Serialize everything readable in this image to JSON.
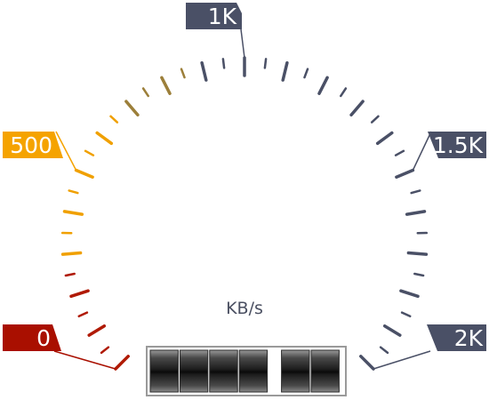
{
  "gauge": {
    "unit": "KB/s",
    "min": 0,
    "max": 2000,
    "labels": [
      {
        "value": 0,
        "text": "0",
        "color": "#a90f00"
      },
      {
        "value": 500,
        "text": "500",
        "color": "#f5a300"
      },
      {
        "value": 1000,
        "text": "1K",
        "color": "#4a5066"
      },
      {
        "value": 1500,
        "text": "1.5K",
        "color": "#4a5066"
      },
      {
        "value": 2000,
        "text": "2K",
        "color": "#4a5066"
      }
    ],
    "colors": {
      "red": "#b01a05",
      "orange": "#f0a000",
      "olive": "#9c7f3a",
      "slate": "#4a5066"
    }
  },
  "odometer": {
    "digit_count": 6,
    "needle_slot": 5
  }
}
